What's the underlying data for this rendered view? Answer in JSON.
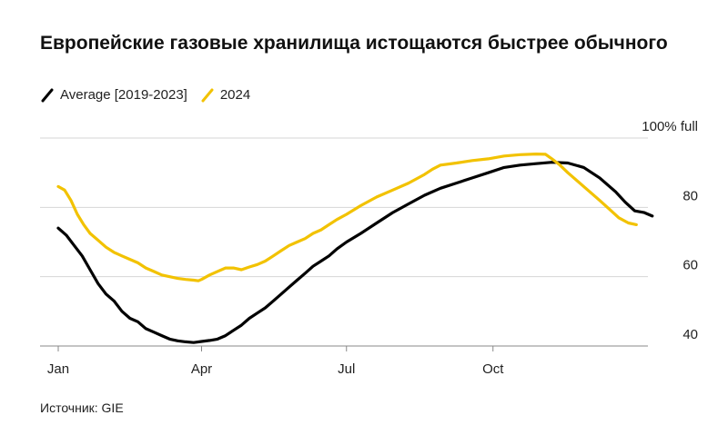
{
  "title": "Европейские газовые хранилища истощаются быстрее обычного",
  "source": "Источник: GIE",
  "colors": {
    "average": "#000000",
    "y2024": "#f2c200",
    "grid": "#d6d6d6",
    "axis": "#888888"
  },
  "chart_data": {
    "type": "line",
    "title": "Европейские газовые хранилища истощаются быстрее обычного",
    "xlabel": "",
    "ylabel": "",
    "x_tick_labels": [
      "Jan",
      "Apr",
      "Jul",
      "Oct"
    ],
    "x_tick_days": [
      0,
      90,
      181,
      273
    ],
    "y_tick_labels": [
      "100% full",
      "80",
      "60",
      "40"
    ],
    "y_ticks": [
      100,
      80,
      60,
      40
    ],
    "ylim": [
      40,
      100
    ],
    "grid": "horizontal",
    "legend": "top-left",
    "series": [
      {
        "name": "Average [2019-2023]",
        "color": "#000000",
        "points": [
          [
            0,
            74
          ],
          [
            5,
            72
          ],
          [
            10,
            69
          ],
          [
            15,
            66
          ],
          [
            20,
            62
          ],
          [
            25,
            58
          ],
          [
            30,
            55
          ],
          [
            35,
            53
          ],
          [
            40,
            50
          ],
          [
            45,
            48
          ],
          [
            50,
            47
          ],
          [
            55,
            45
          ],
          [
            60,
            44
          ],
          [
            65,
            43
          ],
          [
            70,
            42
          ],
          [
            75,
            41.5
          ],
          [
            80,
            41.2
          ],
          [
            85,
            41
          ],
          [
            90,
            41.3
          ],
          [
            95,
            41.6
          ],
          [
            100,
            42
          ],
          [
            105,
            43
          ],
          [
            110,
            44.5
          ],
          [
            115,
            46
          ],
          [
            120,
            48
          ],
          [
            125,
            49.5
          ],
          [
            130,
            51
          ],
          [
            135,
            53
          ],
          [
            140,
            55
          ],
          [
            145,
            57
          ],
          [
            150,
            59
          ],
          [
            155,
            61
          ],
          [
            160,
            63
          ],
          [
            165,
            64.5
          ],
          [
            170,
            66
          ],
          [
            175,
            68
          ],
          [
            181,
            70
          ],
          [
            190,
            72.5
          ],
          [
            200,
            75.5
          ],
          [
            210,
            78.5
          ],
          [
            220,
            81
          ],
          [
            230,
            83.5
          ],
          [
            240,
            85.5
          ],
          [
            250,
            87
          ],
          [
            260,
            88.5
          ],
          [
            270,
            90
          ],
          [
            280,
            91.5
          ],
          [
            290,
            92.2
          ],
          [
            300,
            92.6
          ],
          [
            310,
            93
          ],
          [
            320,
            92.8
          ],
          [
            330,
            91.5
          ],
          [
            340,
            88.5
          ],
          [
            350,
            84.5
          ],
          [
            356,
            81.5
          ],
          [
            362,
            79
          ],
          [
            368,
            78.5
          ],
          [
            373,
            77.5
          ]
        ]
      },
      {
        "name": "2024",
        "color": "#f2c200",
        "points": [
          [
            0,
            86
          ],
          [
            4,
            85
          ],
          [
            8,
            82
          ],
          [
            12,
            78
          ],
          [
            16,
            75
          ],
          [
            20,
            72.5
          ],
          [
            25,
            70.5
          ],
          [
            30,
            68.5
          ],
          [
            35,
            67
          ],
          [
            40,
            66
          ],
          [
            45,
            65
          ],
          [
            50,
            64
          ],
          [
            55,
            62.5
          ],
          [
            60,
            61.5
          ],
          [
            65,
            60.5
          ],
          [
            70,
            60
          ],
          [
            75,
            59.5
          ],
          [
            80,
            59.2
          ],
          [
            85,
            59
          ],
          [
            88,
            58.8
          ],
          [
            90,
            59.2
          ],
          [
            95,
            60.5
          ],
          [
            100,
            61.5
          ],
          [
            105,
            62.5
          ],
          [
            110,
            62.5
          ],
          [
            115,
            62
          ],
          [
            120,
            62.8
          ],
          [
            125,
            63.5
          ],
          [
            130,
            64.5
          ],
          [
            135,
            66
          ],
          [
            140,
            67.5
          ],
          [
            145,
            69
          ],
          [
            150,
            70
          ],
          [
            155,
            71
          ],
          [
            160,
            72.5
          ],
          [
            165,
            73.5
          ],
          [
            170,
            75
          ],
          [
            175,
            76.5
          ],
          [
            181,
            78
          ],
          [
            190,
            80.5
          ],
          [
            200,
            83
          ],
          [
            210,
            85
          ],
          [
            220,
            87
          ],
          [
            230,
            89.5
          ],
          [
            235,
            91
          ],
          [
            240,
            92.2
          ],
          [
            250,
            92.8
          ],
          [
            260,
            93.5
          ],
          [
            270,
            94
          ],
          [
            280,
            94.8
          ],
          [
            290,
            95.2
          ],
          [
            300,
            95.4
          ],
          [
            306,
            95.3
          ],
          [
            310,
            94
          ],
          [
            315,
            92.2
          ],
          [
            320,
            90
          ],
          [
            330,
            86
          ],
          [
            340,
            82
          ],
          [
            346,
            79.5
          ],
          [
            352,
            77
          ],
          [
            358,
            75.5
          ],
          [
            363,
            75
          ]
        ]
      }
    ]
  }
}
